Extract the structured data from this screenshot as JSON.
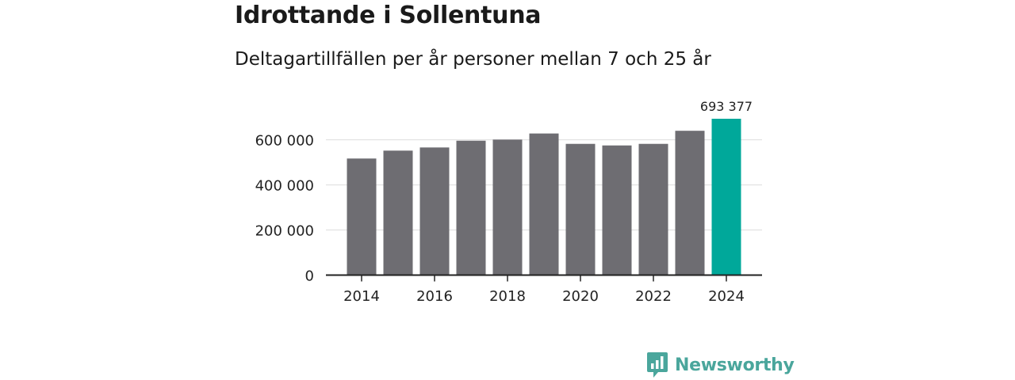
{
  "title": "Idrottande i Sollentuna",
  "subtitle": "Deltagartillfällen per år personer mellan 7 och 25 år",
  "brand": {
    "name": "Newsworthy"
  },
  "colors": {
    "bar": "#6e6d72",
    "highlight": "#00a89a",
    "axis": "#222222",
    "grid": "#dddddd",
    "brand": "#4aa69c"
  },
  "chart_data": {
    "type": "bar",
    "title": "Idrottande i Sollentuna",
    "subtitle": "Deltagartillfällen per år personer mellan 7 och 25 år",
    "categories": [
      2014,
      2015,
      2016,
      2017,
      2018,
      2019,
      2020,
      2021,
      2022,
      2023,
      2024
    ],
    "values": [
      517000,
      552000,
      566000,
      596000,
      601000,
      628000,
      582000,
      575000,
      582000,
      640000,
      693377
    ],
    "highlight_index": 10,
    "data_labels": [
      {
        "index": 10,
        "text": "693 377"
      }
    ],
    "y_ticks": [
      0,
      200000,
      400000,
      600000
    ],
    "y_tick_labels": [
      "0",
      "200 000",
      "400 000",
      "600 000"
    ],
    "x_ticks": [
      2014,
      2016,
      2018,
      2020,
      2022,
      2024
    ],
    "x_tick_labels": [
      "2014",
      "2016",
      "2018",
      "2020",
      "2022",
      "2024"
    ],
    "ylim": [
      0,
      693377
    ],
    "xlabel": "",
    "ylabel": "",
    "grid": true,
    "legend": "none"
  }
}
